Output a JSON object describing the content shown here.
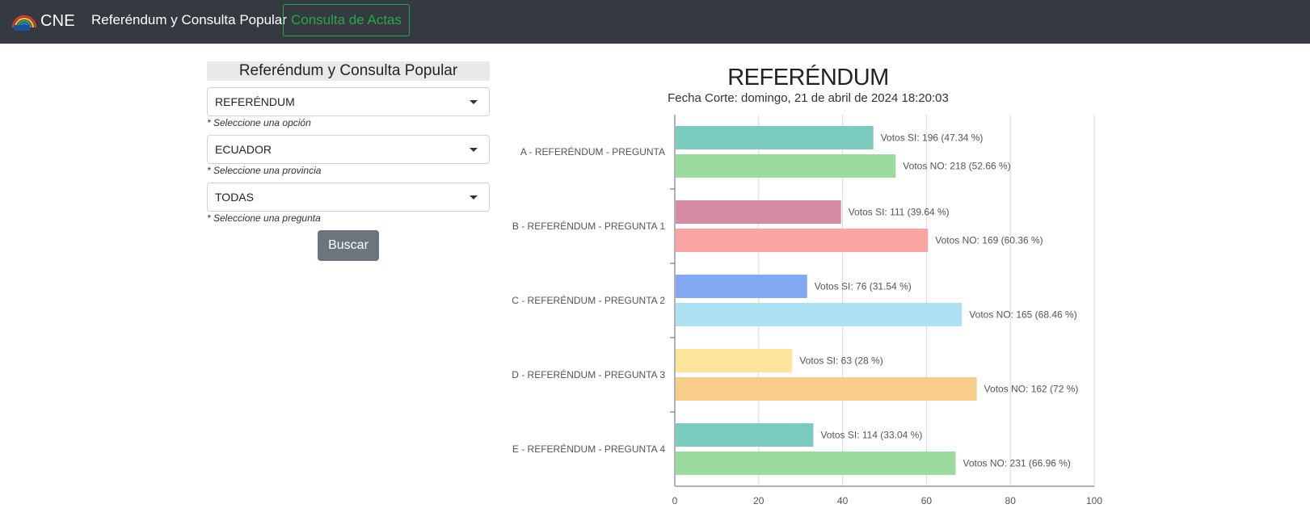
{
  "navbar": {
    "logo_icon": "cne-rainbow-logo",
    "brand": "CNE",
    "title": "Referéndum y Consulta Popular",
    "actas_button": "Consulta de Actas",
    "colors": {
      "background": "#343a40",
      "accent": "#28a745"
    }
  },
  "form": {
    "title": "Referéndum y Consulta Popular",
    "selects": [
      {
        "value": "REFERÉNDUM",
        "hint": "* Seleccione una opción"
      },
      {
        "value": "ECUADOR",
        "hint": "* Seleccione una provincia"
      },
      {
        "value": "TODAS",
        "hint": "* Seleccione una pregunta"
      }
    ],
    "search_button": "Buscar"
  },
  "chart_data": {
    "type": "bar",
    "orientation": "horizontal",
    "title": "REFERÉNDUM",
    "subtitle": "Fecha Corte: domingo, 21 de abril de 2024 18:20:03",
    "xlim": [
      0,
      100
    ],
    "xticks": [
      0,
      20,
      40,
      60,
      80,
      100
    ],
    "grid": true,
    "categories": [
      "A - REFERÉNDUM - PREGUNTA",
      "B - REFERÉNDUM - PREGUNTA 1",
      "C - REFERÉNDUM - PREGUNTA 2",
      "D - REFERÉNDUM - PREGUNTA 3",
      "E - REFERÉNDUM - PREGUNTA 4"
    ],
    "bars": [
      [
        {
          "value": 47.34,
          "label": "Votos SI: 196 (47.34 %)",
          "color": "#7ccbbf"
        },
        {
          "value": 52.66,
          "label": "Votos NO: 218 (52.66 %)",
          "color": "#9adc9d"
        }
      ],
      [
        {
          "value": 39.64,
          "label": "Votos SI: 111 (39.64 %)",
          "color": "#d68ba3"
        },
        {
          "value": 60.36,
          "label": "Votos NO: 169 (60.36 %)",
          "color": "#fba4a4"
        }
      ],
      [
        {
          "value": 31.54,
          "label": "Votos SI: 76 (31.54 %)",
          "color": "#82a8f4"
        },
        {
          "value": 68.46,
          "label": "Votos NO: 165 (68.46 %)",
          "color": "#ade2f3"
        }
      ],
      [
        {
          "value": 28,
          "label": "Votos SI: 63 (28 %)",
          "color": "#fbe59c"
        },
        {
          "value": 72,
          "label": "Votos NO: 162 (72 %)",
          "color": "#f8cc8a"
        }
      ],
      [
        {
          "value": 33.04,
          "label": "Votos SI: 114 (33.04 %)",
          "color": "#7ccbbf"
        },
        {
          "value": 66.96,
          "label": "Votos NO: 231 (66.96 %)",
          "color": "#9adc9d"
        }
      ]
    ]
  }
}
